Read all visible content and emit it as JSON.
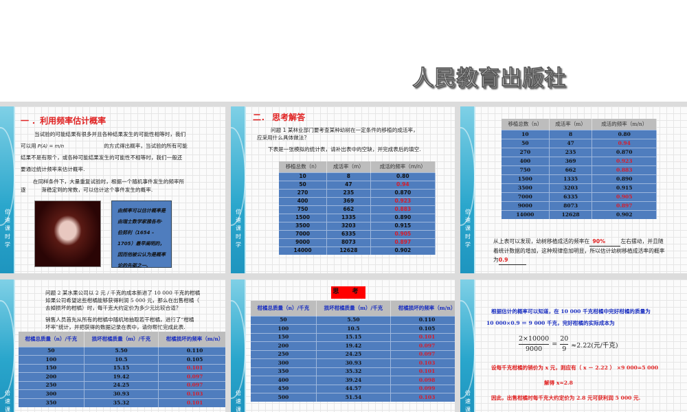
{
  "publisher": "人民教育出版社",
  "side_label": [
    "倍",
    "速",
    "课",
    "时",
    "学"
  ],
  "slide1": {
    "title": "一 ．利用频率估计概率",
    "p1a": "当试验的可能结果有很多并且各种结果发生的可能性相等时，我们",
    "p1b_pre": "可以用",
    "formula": "P(A) = m/n",
    "p1b_post": "的方式得出概率，当试验的所有可能",
    "p1c": "结果不是有限个，或各种可能结果发生的可能性不相等时，我们一般还",
    "p1d": "要通过统计频率来估计概率.",
    "p2a": "在同样条件下，大量重复试验时，根据一个随机事件发生的频率所",
    "p2b": "逐　　　渐稳定到的常数，可以估计这个事件发生的概率.",
    "note": "由频率可以估计概率是由瑞士数学家雅各布·伯努利（1654 – 1705）最早阐明的，因而他被公认为是概率论的先驱之一."
  },
  "slide2": {
    "title": "二．  思考解答",
    "q1a": "问题 1   某林业部门要考查某种幼树在一定条件的移植的成活率，",
    "q1b": "应采用什么具体做法？",
    "q1c": "下表是一张模拟的统计表，请补出表中的空缺，并完成表后的填空."
  },
  "transplant_table": {
    "headers": [
      "移植总数（n）",
      "成活率（m）",
      "成活的频率（m/n）"
    ],
    "rows": [
      [
        "10",
        "8",
        "0.80"
      ],
      [
        "50",
        "47",
        "0.94"
      ],
      [
        "270",
        "235",
        "0.870"
      ],
      [
        "400",
        "369",
        "0.923"
      ],
      [
        "750",
        "662",
        "0.883"
      ],
      [
        "1500",
        "1335",
        "0.890"
      ],
      [
        "3500",
        "3203",
        "0.915"
      ],
      [
        "7000",
        "6335",
        "0.905"
      ],
      [
        "9000",
        "8073",
        "0.897"
      ],
      [
        "14000",
        "12628",
        "0.902"
      ]
    ],
    "highlighted": [
      "0.94",
      "0.923",
      "0.883",
      "0.905",
      "0.897"
    ]
  },
  "slide3": {
    "text1": "从上表可以发现，幼树移植成活的频率在",
    "blank1": "90%",
    "text2": "左右摆动，并且随着统计数据的增加，这种规律愈加明显，所以估计幼树移植成活率的概率为",
    "blank2": "0.9"
  },
  "slide4": {
    "q2a": "问题 2   某水果公司以 2 元 / 千克的成本新进了 10 000 千克的柑橘",
    "q2b": "如果公司希望这些柑橘能够获得利润 5 000 元，那么在出售柑橘（",
    "q2c": "去掉损坏的柑橘）时，每千克大约定价为多少元比较合适？",
    "q2d": "销售人员首先从所有的柑橘中随机地抽取若干柑橘，进行了“柑橘",
    "q2e": "坏率”统计，并把获得的数据记录在表中，请你帮忙完成此表."
  },
  "orange_table": {
    "headers": [
      "柑橘总质量（n）/千克",
      "损坏柑橘质量（m）/千克",
      "柑橘损坏的频率（m/n）"
    ],
    "rows": [
      [
        "50",
        "5.50",
        "0.110"
      ],
      [
        "100",
        "10.5",
        "0.105"
      ],
      [
        "150",
        "15.15",
        "0.101"
      ],
      [
        "200",
        "19.42",
        "0.097"
      ],
      [
        "250",
        "24.25",
        "0.097"
      ],
      [
        "300",
        "30.93",
        "0.103"
      ],
      [
        "350",
        "35.32",
        "0.101"
      ],
      [
        "400",
        "39.24",
        "0.098"
      ],
      [
        "450",
        "44.57",
        "0.099"
      ],
      [
        "500",
        "51.54",
        "0.103"
      ]
    ],
    "highlighted_from_row": 2
  },
  "slide5": {
    "badge": "思 考"
  },
  "slide6": {
    "l1": "根据估计的概率可以知道，在 10 000 千克柑橘中完好柑橘的质量为",
    "l2": "10 000×0.9 ＝ 9 000 千克，完好柑橘的实际成本为",
    "frac1_num": "2×10000",
    "frac1_den": "9000",
    "eq": "=",
    "frac2_num": "20",
    "frac2_den": "9",
    "approx": "≈2.22(元/千克)",
    "l3": "设每千克柑橘的销价为 x 元，则应有（ x － 2.22 ） ×9 000=5 000",
    "l4": "解得   x≈2.8",
    "l5": "因此，出售柑橘时每千克大约定价为 2.8 元可获利润 5 000 元."
  },
  "colors": {
    "accent_red": "#e02020",
    "table_blue": "#4f7dbe",
    "strip_teal": "#2aa6cc",
    "text_blue": "#1a2fc0"
  }
}
